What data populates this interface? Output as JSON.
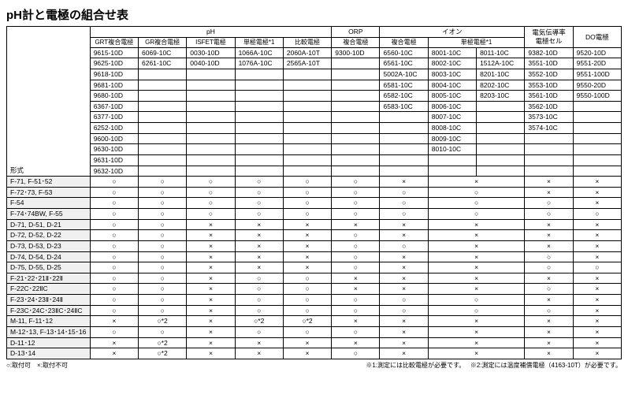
{
  "title": "pH計と電極の組合せ表",
  "row_label": "形式",
  "legend_left": "○:取付可　×:取付不可",
  "legend_right_1": "※1:測定には比較電極が必要です。",
  "legend_right_2": "※2:測定には温度補償電極（4163-10T）が必要です。",
  "marks": {
    "ok": "○",
    "ng": "×",
    "oknote": "○*2"
  },
  "groups": [
    {
      "label": "pH",
      "span": 5
    },
    {
      "label": "ORP",
      "span": 1
    },
    {
      "label": "イオン",
      "span": 3
    },
    {
      "label": "電気伝導率\n電極セル",
      "span": 1
    },
    {
      "label": "DO電極",
      "span": 1
    }
  ],
  "subheaders": [
    "GRT複合電極",
    "GR複合電極",
    "ISFET電極",
    "単極電極*1",
    "比較電極",
    "複合電極",
    "複合電極",
    "単極電極*1",
    "",
    "",
    ""
  ],
  "catalog": [
    [
      "9615-10D",
      "6069-10C",
      "0030-10D",
      "1066A-10C",
      "2060A-10T",
      "9300-10D",
      "6560-10C",
      "8001-10C",
      "8011-10C",
      "9382-10D",
      "9520-10D"
    ],
    [
      "9625-10D",
      "6261-10C",
      "0040-10D",
      "1076A-10C",
      "2565A-10T",
      "",
      "6561-10C",
      "8002-10C",
      "1512A-10C",
      "3551-10D",
      "9551-20D"
    ],
    [
      "9618-10D",
      "",
      "",
      "",
      "",
      "",
      "5002A-10C",
      "8003-10C",
      "8201-10C",
      "3552-10D",
      "9551-100D"
    ],
    [
      "9681-10D",
      "",
      "",
      "",
      "",
      "",
      "6581-10C",
      "8004-10C",
      "8202-10C",
      "3553-10D",
      "9550-20D"
    ],
    [
      "9680-10D",
      "",
      "",
      "",
      "",
      "",
      "6582-10C",
      "8005-10C",
      "8203-10C",
      "3561-10D",
      "9550-100D"
    ],
    [
      "6367-10D",
      "",
      "",
      "",
      "",
      "",
      "6583-10C",
      "8006-10C",
      "",
      "3562-10D",
      ""
    ],
    [
      "6377-10D",
      "",
      "",
      "",
      "",
      "",
      "",
      "8007-10C",
      "",
      "3573-10C",
      ""
    ],
    [
      "6252-10D",
      "",
      "",
      "",
      "",
      "",
      "",
      "8008-10C",
      "",
      "3574-10C",
      ""
    ],
    [
      "9600-10D",
      "",
      "",
      "",
      "",
      "",
      "",
      "8009-10C",
      "",
      "",
      ""
    ],
    [
      "9630-10D",
      "",
      "",
      "",
      "",
      "",
      "",
      "8010-10C",
      "",
      "",
      ""
    ],
    [
      "9631-10D",
      "",
      "",
      "",
      "",
      "",
      "",
      "",
      "",
      "",
      ""
    ],
    [
      "9632-10D",
      "",
      "",
      "",
      "",
      "",
      "",
      "",
      "",
      "",
      ""
    ]
  ],
  "models": [
    {
      "name": "F-71, F-51･52",
      "c": [
        "○",
        "○",
        "○",
        "○",
        "○",
        "○",
        "×",
        "×",
        "-merge",
        "×",
        "×"
      ]
    },
    {
      "name": "F-72･73, F-53",
      "c": [
        "○",
        "○",
        "○",
        "○",
        "○",
        "○",
        "○",
        "○",
        "-merge",
        "×",
        "×"
      ]
    },
    {
      "name": "F-54",
      "c": [
        "○",
        "○",
        "○",
        "○",
        "○",
        "○",
        "○",
        "○",
        "-merge",
        "○",
        "×"
      ]
    },
    {
      "name": "F-74･74BW, F-55",
      "c": [
        "○",
        "○",
        "○",
        "○",
        "○",
        "○",
        "○",
        "○",
        "-merge",
        "○",
        "○"
      ]
    },
    {
      "name": "D-71, D-51, D-21",
      "c": [
        "○",
        "○",
        "×",
        "×",
        "×",
        "×",
        "×",
        "×",
        "-merge",
        "×",
        "×"
      ]
    },
    {
      "name": "D-72, D-52, D-22",
      "c": [
        "○",
        "○",
        "×",
        "×",
        "×",
        "○",
        "×",
        "×",
        "-merge",
        "×",
        "×"
      ]
    },
    {
      "name": "D-73, D-53, D-23",
      "c": [
        "○",
        "○",
        "×",
        "×",
        "×",
        "○",
        "○",
        "×",
        "-merge",
        "×",
        "×"
      ]
    },
    {
      "name": "D-74, D-54, D-24",
      "c": [
        "○",
        "○",
        "×",
        "×",
        "×",
        "○",
        "×",
        "×",
        "-merge",
        "○",
        "×"
      ]
    },
    {
      "name": "D-75, D-55, D-25",
      "c": [
        "○",
        "○",
        "×",
        "×",
        "×",
        "○",
        "×",
        "×",
        "-merge",
        "○",
        "○"
      ]
    },
    {
      "name": "F-21･22･21Ⅱ･22Ⅱ",
      "c": [
        "○",
        "○",
        "×",
        "○",
        "○",
        "×",
        "×",
        "×",
        "-merge",
        "×",
        "×"
      ]
    },
    {
      "name": "F-22C･22ⅡC",
      "c": [
        "○",
        "○",
        "×",
        "○",
        "○",
        "×",
        "×",
        "×",
        "-merge",
        "○",
        "×"
      ]
    },
    {
      "name": "F-23･24･23Ⅱ･24Ⅱ",
      "c": [
        "○",
        "○",
        "×",
        "○",
        "○",
        "○",
        "○",
        "○",
        "-merge",
        "×",
        "×"
      ]
    },
    {
      "name": "F-23C･24C･23ⅡC･24ⅡC",
      "c": [
        "○",
        "○",
        "×",
        "○",
        "○",
        "○",
        "○",
        "○",
        "-merge",
        "○",
        "×"
      ]
    },
    {
      "name": "M-11, F-11･12",
      "c": [
        "×",
        "○*2",
        "×",
        "○*2",
        "○*2",
        "×",
        "×",
        "×",
        "-merge",
        "×",
        "×"
      ]
    },
    {
      "name": "M-12･13, F-13･14･15･16",
      "c": [
        "○",
        "○",
        "×",
        "○",
        "○",
        "○",
        "×",
        "×",
        "-merge",
        "×",
        "×"
      ]
    },
    {
      "name": "D-11･12",
      "c": [
        "×",
        "○*2",
        "×",
        "×",
        "×",
        "×",
        "×",
        "×",
        "-merge",
        "×",
        "×"
      ]
    },
    {
      "name": "D-13･14",
      "c": [
        "×",
        "○*2",
        "×",
        "×",
        "×",
        "○",
        "×",
        "×",
        "-merge",
        "×",
        "×"
      ]
    }
  ]
}
